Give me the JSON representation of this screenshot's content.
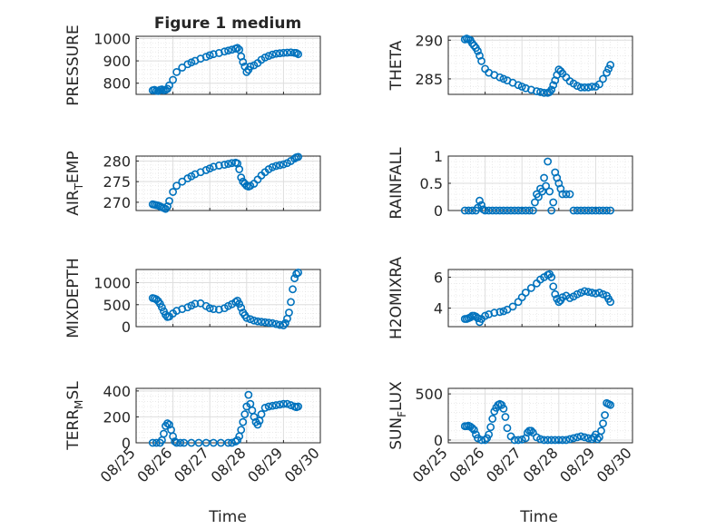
{
  "figure": {
    "title": "Figure 1 medium",
    "xlabel": "Time",
    "xticks": [
      "08/25",
      "08/26",
      "08/27",
      "08/28",
      "08/29",
      "08/30"
    ],
    "marker_color": "#0072bd",
    "grid_color": "#dedede",
    "axis_color": "#262626"
  },
  "chart_data": [
    {
      "type": "scatter",
      "ylabel": "PRESSURE",
      "ylim": [
        750,
        1010
      ],
      "yticks": [
        800,
        900,
        1000
      ],
      "grid": true,
      "x_range": [
        "08/25",
        "08/30"
      ],
      "x": [
        25.45,
        25.5,
        25.55,
        25.6,
        25.65,
        25.7,
        25.75,
        25.8,
        25.85,
        25.9,
        26.0,
        26.1,
        26.25,
        26.4,
        26.5,
        26.6,
        26.75,
        26.9,
        27.0,
        27.1,
        27.25,
        27.4,
        27.5,
        27.6,
        27.7,
        27.75,
        27.8,
        27.85,
        27.9,
        27.95,
        28.0,
        28.05,
        28.1,
        28.2,
        28.3,
        28.4,
        28.5,
        28.6,
        28.7,
        28.8,
        28.9,
        29.0,
        29.1,
        29.2,
        29.3,
        29.35,
        29.4
      ],
      "y": [
        768,
        770,
        766,
        765,
        770,
        772,
        768,
        770,
        775,
        790,
        815,
        850,
        870,
        885,
        893,
        900,
        910,
        918,
        925,
        930,
        935,
        942,
        946,
        950,
        955,
        958,
        950,
        920,
        895,
        875,
        850,
        860,
        875,
        880,
        890,
        905,
        915,
        922,
        928,
        932,
        934,
        936,
        937,
        938,
        936,
        935,
        930
      ]
    },
    {
      "type": "scatter",
      "ylabel": "THETA",
      "ylim": [
        283,
        290.5
      ],
      "yticks": [
        285,
        290
      ],
      "grid": true,
      "x_range": [
        "08/25",
        "08/30"
      ],
      "x": [
        25.45,
        25.5,
        25.55,
        25.6,
        25.65,
        25.7,
        25.75,
        25.8,
        25.85,
        25.9,
        26.0,
        26.1,
        26.25,
        26.4,
        26.5,
        26.6,
        26.75,
        26.9,
        27.0,
        27.1,
        27.25,
        27.4,
        27.5,
        27.6,
        27.7,
        27.75,
        27.8,
        27.85,
        27.9,
        27.95,
        28.0,
        28.05,
        28.1,
        28.2,
        28.3,
        28.4,
        28.5,
        28.6,
        28.7,
        28.8,
        28.9,
        29.0,
        29.1,
        29.2,
        29.3,
        29.35,
        29.4
      ],
      "y": [
        290.1,
        290.2,
        290.1,
        290.0,
        289.6,
        289.3,
        289.0,
        288.6,
        288.0,
        287.3,
        286.3,
        285.8,
        285.5,
        285.2,
        285.0,
        284.8,
        284.5,
        284.2,
        284.0,
        283.8,
        283.6,
        283.4,
        283.3,
        283.2,
        283.2,
        283.3,
        283.6,
        284.2,
        284.8,
        285.5,
        286.2,
        286.0,
        285.7,
        285.2,
        284.7,
        284.4,
        284.1,
        283.9,
        283.9,
        283.9,
        284.0,
        284.0,
        284.3,
        285.0,
        285.8,
        286.3,
        286.8
      ]
    },
    {
      "type": "scatter",
      "ylabel": "AIR_TEMP",
      "ylim": [
        268,
        281.2
      ],
      "yticks": [
        270,
        275,
        280
      ],
      "grid": true,
      "x_range": [
        "08/25",
        "08/30"
      ],
      "x": [
        25.45,
        25.5,
        25.55,
        25.6,
        25.65,
        25.7,
        25.75,
        25.8,
        25.85,
        25.9,
        26.0,
        26.1,
        26.25,
        26.4,
        26.5,
        26.6,
        26.75,
        26.9,
        27.0,
        27.1,
        27.25,
        27.4,
        27.5,
        27.6,
        27.7,
        27.75,
        27.8,
        27.85,
        27.9,
        27.95,
        28.0,
        28.05,
        28.1,
        28.2,
        28.3,
        28.4,
        28.5,
        28.6,
        28.7,
        28.8,
        28.9,
        29.0,
        29.1,
        29.2,
        29.3,
        29.35,
        29.4
      ],
      "y": [
        269.5,
        269.4,
        269.3,
        269.2,
        269.0,
        268.8,
        268.6,
        268.4,
        269.0,
        270.3,
        272.5,
        274.0,
        275.0,
        275.8,
        276.3,
        276.8,
        277.3,
        277.8,
        278.2,
        278.6,
        278.9,
        279.1,
        279.3,
        279.5,
        279.6,
        279.4,
        278.0,
        276.0,
        275.0,
        274.5,
        274.0,
        273.8,
        274.0,
        274.5,
        275.5,
        276.5,
        277.3,
        278.0,
        278.5,
        278.8,
        279.0,
        279.2,
        279.5,
        280.0,
        280.6,
        280.9,
        281.0
      ]
    },
    {
      "type": "scatter",
      "ylabel": "RAINFALL",
      "ylim": [
        0,
        1
      ],
      "yticks": [
        0,
        0.5,
        1
      ],
      "grid": true,
      "x_range": [
        "08/25",
        "08/30"
      ],
      "x": [
        25.45,
        25.55,
        25.65,
        25.75,
        25.8,
        25.85,
        25.9,
        25.95,
        26.0,
        26.1,
        26.2,
        26.3,
        26.4,
        26.5,
        26.6,
        26.7,
        26.8,
        26.9,
        27.0,
        27.1,
        27.2,
        27.3,
        27.35,
        27.4,
        27.45,
        27.5,
        27.55,
        27.6,
        27.65,
        27.7,
        27.75,
        27.8,
        27.85,
        27.9,
        27.95,
        28.0,
        28.05,
        28.1,
        28.2,
        28.3,
        28.4,
        28.5,
        28.6,
        28.7,
        28.8,
        28.9,
        29.0,
        29.1,
        29.2,
        29.3,
        29.4
      ],
      "y": [
        0,
        0,
        0,
        0,
        0.05,
        0.18,
        0.1,
        0.02,
        0,
        0,
        0,
        0,
        0,
        0,
        0,
        0,
        0,
        0,
        0,
        0,
        0,
        0,
        0.15,
        0.3,
        0.25,
        0.4,
        0.35,
        0.6,
        0.45,
        0.9,
        0.35,
        0.0,
        0.15,
        0.7,
        0.6,
        0.5,
        0.4,
        0.3,
        0.3,
        0.3,
        0,
        0,
        0,
        0,
        0,
        0,
        0,
        0,
        0,
        0,
        0
      ]
    },
    {
      "type": "scatter",
      "ylabel": "MIXDEPTH",
      "ylim": [
        0,
        1300
      ],
      "yticks": [
        0,
        500,
        1000
      ],
      "grid": true,
      "x_range": [
        "08/25",
        "08/30"
      ],
      "x": [
        25.45,
        25.5,
        25.55,
        25.6,
        25.65,
        25.7,
        25.75,
        25.8,
        25.85,
        25.9,
        26.0,
        26.1,
        26.25,
        26.4,
        26.5,
        26.6,
        26.75,
        26.9,
        27.0,
        27.1,
        27.25,
        27.4,
        27.5,
        27.6,
        27.7,
        27.75,
        27.8,
        27.85,
        27.9,
        27.95,
        28.0,
        28.1,
        28.2,
        28.3,
        28.4,
        28.5,
        28.6,
        28.7,
        28.8,
        28.9,
        29.0,
        29.05,
        29.1,
        29.15,
        29.2,
        29.25,
        29.3,
        29.35,
        29.4
      ],
      "y": [
        650,
        640,
        620,
        580,
        520,
        440,
        350,
        270,
        220,
        230,
        300,
        360,
        400,
        440,
        480,
        520,
        530,
        470,
        420,
        400,
        390,
        420,
        470,
        510,
        560,
        590,
        520,
        430,
        320,
        260,
        200,
        170,
        140,
        120,
        110,
        100,
        90,
        80,
        60,
        40,
        30,
        80,
        180,
        320,
        560,
        850,
        1100,
        1200,
        1230
      ]
    },
    {
      "type": "scatter",
      "ylabel": "H2OMIXRA",
      "ylim": [
        2.8,
        6.5
      ],
      "yticks": [
        4,
        6
      ],
      "grid": true,
      "x_range": [
        "08/25",
        "08/30"
      ],
      "x": [
        25.45,
        25.5,
        25.55,
        25.6,
        25.65,
        25.7,
        25.75,
        25.8,
        25.85,
        25.9,
        26.0,
        26.1,
        26.25,
        26.4,
        26.5,
        26.6,
        26.75,
        26.9,
        27.0,
        27.1,
        27.25,
        27.4,
        27.5,
        27.6,
        27.7,
        27.75,
        27.8,
        27.85,
        27.9,
        27.95,
        28.0,
        28.05,
        28.1,
        28.2,
        28.3,
        28.4,
        28.5,
        28.6,
        28.7,
        28.8,
        28.9,
        29.0,
        29.1,
        29.2,
        29.3,
        29.35,
        29.4
      ],
      "y": [
        3.3,
        3.3,
        3.35,
        3.4,
        3.5,
        3.5,
        3.45,
        3.35,
        3.1,
        3.3,
        3.5,
        3.6,
        3.7,
        3.75,
        3.8,
        3.9,
        4.1,
        4.4,
        4.7,
        5.0,
        5.3,
        5.6,
        5.85,
        6.0,
        6.15,
        6.2,
        6.0,
        5.4,
        4.9,
        4.6,
        4.4,
        4.5,
        4.7,
        4.8,
        4.65,
        4.75,
        4.9,
        5.0,
        5.1,
        5.05,
        5.0,
        4.95,
        5.0,
        4.9,
        4.8,
        4.6,
        4.4
      ]
    },
    {
      "type": "scatter",
      "ylabel": "TERR_MSL",
      "ylim": [
        0,
        420
      ],
      "yticks": [
        0,
        200,
        400
      ],
      "grid": true,
      "x_range": [
        "08/25",
        "08/30"
      ],
      "x": [
        25.45,
        25.55,
        25.65,
        25.7,
        25.75,
        25.8,
        25.85,
        25.9,
        25.95,
        26.0,
        26.05,
        26.1,
        26.2,
        26.3,
        26.5,
        26.7,
        26.9,
        27.1,
        27.3,
        27.5,
        27.6,
        27.7,
        27.75,
        27.8,
        27.85,
        27.9,
        27.95,
        28.0,
        28.05,
        28.1,
        28.15,
        28.2,
        28.25,
        28.3,
        28.35,
        28.4,
        28.5,
        28.6,
        28.7,
        28.8,
        28.9,
        29.0,
        29.1,
        29.2,
        29.3,
        29.35,
        29.4
      ],
      "y": [
        0,
        0,
        0,
        20,
        70,
        130,
        150,
        140,
        100,
        50,
        10,
        0,
        0,
        0,
        0,
        0,
        0,
        0,
        0,
        0,
        0,
        10,
        20,
        50,
        100,
        160,
        220,
        280,
        370,
        300,
        250,
        200,
        160,
        140,
        170,
        220,
        270,
        280,
        285,
        290,
        295,
        300,
        300,
        290,
        280,
        275,
        280
      ]
    },
    {
      "type": "scatter",
      "ylabel": "SUN_FLUX",
      "ylim": [
        -30,
        560
      ],
      "yticks": [
        0,
        500
      ],
      "grid": true,
      "x_range": [
        "08/25",
        "08/30"
      ],
      "x": [
        25.45,
        25.5,
        25.55,
        25.6,
        25.65,
        25.7,
        25.75,
        25.8,
        25.9,
        26.0,
        26.05,
        26.1,
        26.15,
        26.2,
        26.25,
        26.3,
        26.35,
        26.4,
        26.45,
        26.5,
        26.55,
        26.6,
        26.7,
        26.8,
        26.9,
        27.0,
        27.1,
        27.15,
        27.2,
        27.25,
        27.3,
        27.4,
        27.5,
        27.6,
        27.7,
        27.8,
        27.9,
        28.0,
        28.1,
        28.2,
        28.3,
        28.4,
        28.5,
        28.6,
        28.7,
        28.8,
        28.9,
        28.95,
        29.0,
        29.05,
        29.1,
        29.15,
        29.2,
        29.25,
        29.3,
        29.35,
        29.4
      ],
      "y": [
        150,
        150,
        155,
        145,
        130,
        110,
        60,
        20,
        0,
        0,
        20,
        60,
        140,
        230,
        310,
        350,
        380,
        390,
        380,
        340,
        250,
        130,
        40,
        0,
        0,
        5,
        20,
        80,
        100,
        100,
        80,
        30,
        10,
        0,
        0,
        0,
        0,
        0,
        0,
        0,
        10,
        20,
        30,
        40,
        30,
        20,
        10,
        30,
        60,
        10,
        30,
        100,
        180,
        270,
        400,
        390,
        380
      ]
    }
  ]
}
